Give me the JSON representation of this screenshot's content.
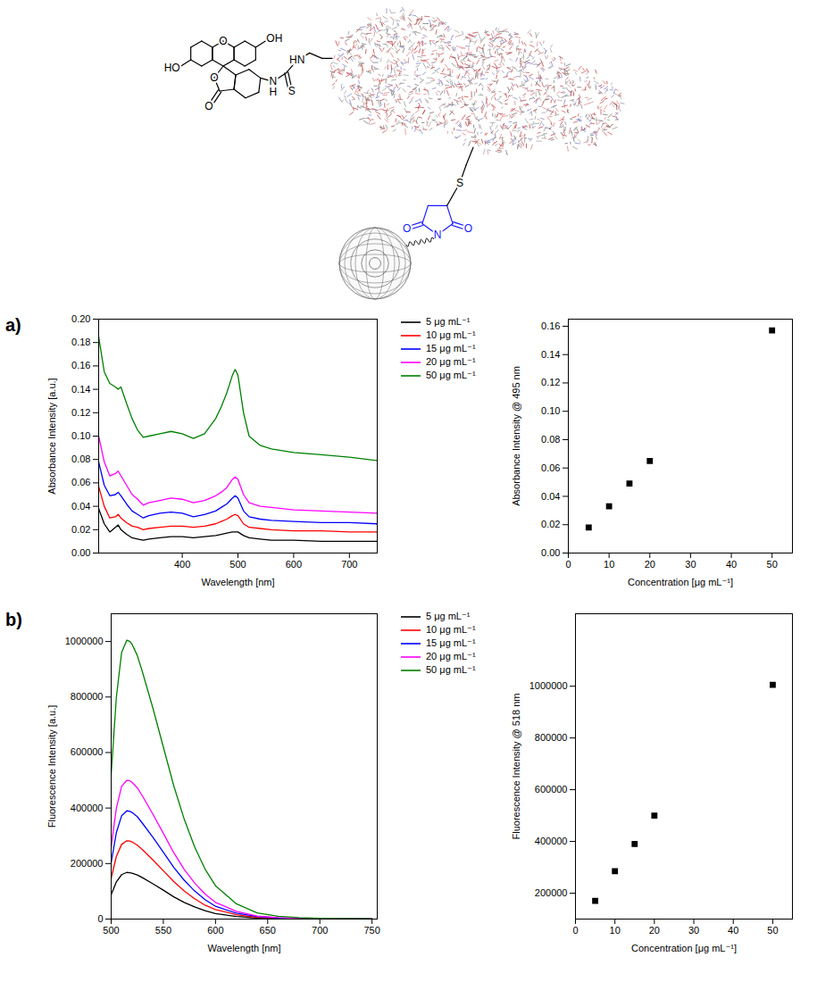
{
  "diagram": {
    "fluorescein": {
      "hydroxyl_top": "OH",
      "hydroxyl_left": "HO",
      "ring_oxygen": "O",
      "lactone_oxygen": "O",
      "carbonyl_oxygen": "O"
    },
    "thiourea": {
      "amine_top": "HN",
      "amine_bottom_n": "N",
      "amine_bottom_h": "H",
      "sulfur": "S"
    },
    "thioether": {
      "sulfur": "S"
    },
    "succinimide": {
      "oxygen_left": "O",
      "nitrogen": "N",
      "oxygen_right": "O"
    }
  },
  "panel_labels": [
    "a)",
    "b)"
  ],
  "chart_data": [
    {
      "type": "line",
      "x_label": "Wavelength [nm]",
      "y_label": "Absorbance Intensity [a.u.]",
      "legend": "right",
      "grid": false,
      "xlim": [
        250,
        750
      ],
      "xticks": [
        400,
        500,
        600,
        700
      ],
      "ylim": [
        0,
        0.2
      ],
      "yticks": [
        {
          "value": 0,
          "label": "0.00"
        },
        {
          "value": 0.02,
          "label": "0.02"
        },
        {
          "value": 0.04,
          "label": "0.04"
        },
        {
          "value": 0.06,
          "label": "0.06"
        },
        {
          "value": 0.08,
          "label": "0.08"
        },
        {
          "value": 0.1,
          "label": "0.10"
        },
        {
          "value": 0.12,
          "label": "0.12"
        },
        {
          "value": 0.14,
          "label": "0.14"
        },
        {
          "value": 0.16,
          "label": "0.16"
        },
        {
          "value": 0.18,
          "label": "0.18"
        },
        {
          "value": 0.2,
          "label": "0.20"
        }
      ],
      "x": [
        250,
        260,
        270,
        280,
        285,
        290,
        300,
        310,
        320,
        330,
        340,
        360,
        380,
        400,
        420,
        440,
        460,
        470,
        480,
        490,
        495,
        500,
        510,
        520,
        540,
        560,
        600,
        650,
        700,
        750
      ],
      "series": [
        {
          "name": "5 μg mL⁻¹",
          "color": "#000000",
          "values": [
            0.038,
            0.025,
            0.018,
            0.022,
            0.024,
            0.02,
            0.016,
            0.013,
            0.012,
            0.011,
            0.012,
            0.013,
            0.014,
            0.014,
            0.013,
            0.014,
            0.015,
            0.016,
            0.017,
            0.018,
            0.018,
            0.018,
            0.015,
            0.013,
            0.012,
            0.011,
            0.011,
            0.01,
            0.01,
            0.01
          ]
        },
        {
          "name": "10 μg mL⁻¹",
          "color": "#ff0000",
          "values": [
            0.057,
            0.04,
            0.03,
            0.031,
            0.033,
            0.03,
            0.026,
            0.023,
            0.022,
            0.02,
            0.021,
            0.022,
            0.023,
            0.023,
            0.022,
            0.023,
            0.025,
            0.027,
            0.029,
            0.032,
            0.033,
            0.032,
            0.025,
            0.022,
            0.021,
            0.02,
            0.019,
            0.019,
            0.018,
            0.018
          ]
        },
        {
          "name": "15 μg mL⁻¹",
          "color": "#0000ff",
          "values": [
            0.078,
            0.058,
            0.049,
            0.05,
            0.052,
            0.049,
            0.042,
            0.036,
            0.033,
            0.03,
            0.032,
            0.034,
            0.035,
            0.034,
            0.031,
            0.033,
            0.036,
            0.039,
            0.042,
            0.047,
            0.049,
            0.047,
            0.036,
            0.031,
            0.029,
            0.028,
            0.027,
            0.026,
            0.026,
            0.025
          ]
        },
        {
          "name": "20 μg mL⁻¹",
          "color": "#ff00ff",
          "values": [
            0.1,
            0.078,
            0.066,
            0.068,
            0.07,
            0.066,
            0.058,
            0.05,
            0.046,
            0.041,
            0.043,
            0.045,
            0.047,
            0.046,
            0.043,
            0.045,
            0.049,
            0.052,
            0.056,
            0.063,
            0.065,
            0.063,
            0.05,
            0.043,
            0.04,
            0.039,
            0.037,
            0.036,
            0.035,
            0.034
          ]
        },
        {
          "name": "50 μg mL⁻¹",
          "color": "#008000",
          "values": [
            0.185,
            0.155,
            0.145,
            0.142,
            0.14,
            0.142,
            0.128,
            0.115,
            0.105,
            0.099,
            0.1,
            0.102,
            0.104,
            0.102,
            0.098,
            0.102,
            0.115,
            0.125,
            0.137,
            0.152,
            0.157,
            0.152,
            0.12,
            0.1,
            0.092,
            0.089,
            0.086,
            0.084,
            0.082,
            0.079
          ]
        }
      ]
    },
    {
      "type": "scatter",
      "x_label": "Concentration [μg mL⁻¹]",
      "y_label": "Absorbance Intensity @ 495 nm",
      "marker": "square",
      "color": "#000000",
      "grid": false,
      "xlim": [
        0,
        55
      ],
      "xticks": [
        0,
        10,
        20,
        30,
        40,
        50
      ],
      "ylim": [
        0,
        0.165
      ],
      "yticks": [
        {
          "value": 0,
          "label": "0.00"
        },
        {
          "value": 0.02,
          "label": "0.02"
        },
        {
          "value": 0.04,
          "label": "0.04"
        },
        {
          "value": 0.06,
          "label": "0.06"
        },
        {
          "value": 0.08,
          "label": "0.08"
        },
        {
          "value": 0.1,
          "label": "0.10"
        },
        {
          "value": 0.12,
          "label": "0.12"
        },
        {
          "value": 0.14,
          "label": "0.14"
        },
        {
          "value": 0.16,
          "label": "0.16"
        }
      ],
      "x": [
        5,
        10,
        15,
        20,
        50
      ],
      "values": [
        0.018,
        0.033,
        0.049,
        0.065,
        0.157
      ]
    },
    {
      "type": "line",
      "x_label": "Wavelength [nm]",
      "y_label": "Fluorescence Intensity [a.u.]",
      "legend": "right",
      "grid": false,
      "xlim": [
        500,
        755
      ],
      "xticks": [
        500,
        550,
        600,
        650,
        700,
        750
      ],
      "ylim": [
        0,
        1100000
      ],
      "yticks": [
        0,
        200000,
        400000,
        600000,
        800000,
        1000000
      ],
      "x": [
        500,
        505,
        510,
        515,
        518,
        520,
        525,
        530,
        540,
        550,
        560,
        570,
        580,
        590,
        600,
        620,
        640,
        660,
        680,
        700,
        750
      ],
      "series": [
        {
          "name": "5 μg mL⁻¹",
          "color": "#000000",
          "values": [
            88000,
            134000,
            160000,
            168000,
            167000,
            165000,
            159000,
            149000,
            127000,
            104000,
            80000,
            60000,
            44000,
            30000,
            20000,
            9000,
            4000,
            2000,
            800,
            500,
            200
          ]
        },
        {
          "name": "10 μg mL⁻¹",
          "color": "#ff0000",
          "values": [
            147000,
            226000,
            269000,
            282000,
            281000,
            278000,
            266000,
            250000,
            213000,
            174000,
            135000,
            101000,
            73000,
            50000,
            34000,
            16000,
            6000,
            3000,
            1400,
            800,
            300
          ]
        },
        {
          "name": "15 μg mL⁻¹",
          "color": "#0000ff",
          "values": [
            203000,
            312000,
            372000,
            390000,
            388000,
            384000,
            369000,
            345000,
            295000,
            241000,
            186000,
            140000,
            101000,
            70000,
            46000,
            21000,
            9000,
            4000,
            2000,
            1200,
            400
          ]
        },
        {
          "name": "20 μg mL⁻¹",
          "color": "#ff00ff",
          "values": [
            260000,
            400000,
            478000,
            500000,
            498000,
            493000,
            473000,
            443000,
            378000,
            309000,
            239000,
            179000,
            130000,
            90000,
            60000,
            28000,
            11000,
            5000,
            2500,
            1500,
            500
          ]
        },
        {
          "name": "50 μg mL⁻¹",
          "color": "#008000",
          "values": [
            520000,
            800000,
            960000,
            1005000,
            1000000,
            990000,
            950000,
            890000,
            760000,
            620000,
            480000,
            360000,
            260000,
            180000,
            120000,
            55000,
            22000,
            10000,
            5000,
            3000,
            1000
          ]
        }
      ]
    },
    {
      "type": "scatter",
      "x_label": "Concentration [μg mL⁻¹]",
      "y_label": "Fluorescence Intensity @ 518 nm",
      "marker": "square",
      "color": "#000000",
      "grid": false,
      "xlim": [
        0,
        55
      ],
      "xticks": [
        0,
        10,
        20,
        30,
        40,
        50
      ],
      "ylim": [
        100000,
        1280000
      ],
      "yticks": [
        200000,
        400000,
        600000,
        800000,
        1000000
      ],
      "x": [
        5,
        10,
        15,
        20,
        50
      ],
      "values": [
        170000,
        285000,
        390000,
        500000,
        1005000
      ]
    }
  ]
}
